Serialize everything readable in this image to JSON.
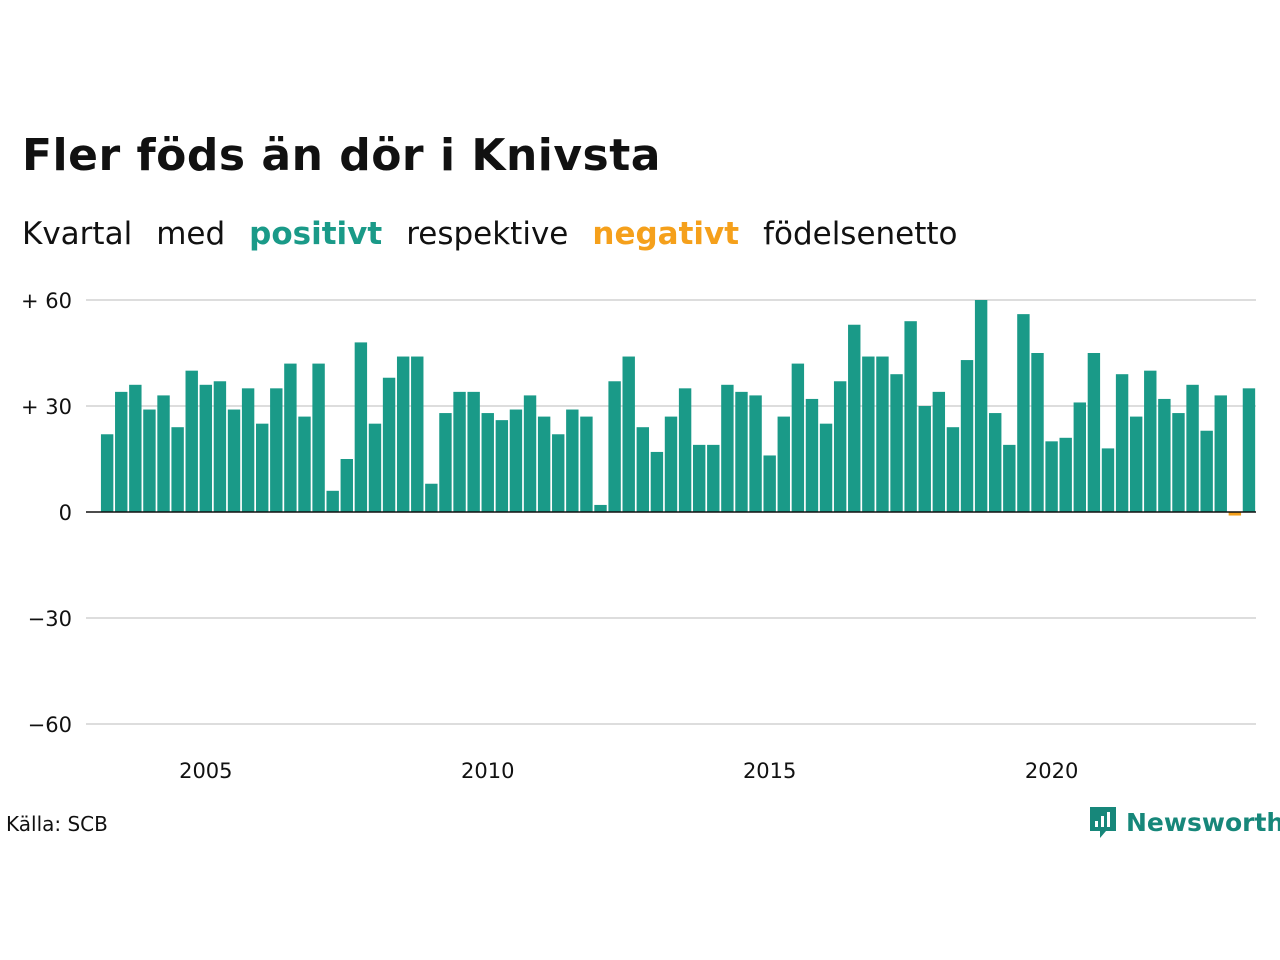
{
  "header": {
    "title": "Fler föds än dör i Knivsta",
    "subtitle_words": [
      "Kvartal",
      "med",
      "positivt",
      "respektive",
      "negativt",
      "födelsenetto"
    ]
  },
  "footer": {
    "source": "Källa: SCB",
    "brand": "Newsworthy"
  },
  "colors": {
    "positive": "#1a9a88",
    "negative": "#f5a01b",
    "grid": "#dddddd",
    "zero_line": "#111111",
    "brand": "#17877a"
  },
  "icons": {
    "logo": "newsworthy-chart-bubble-icon"
  },
  "chart_data": {
    "type": "bar",
    "title": "Fler föds än dör i Knivsta",
    "xlabel": "",
    "ylabel": "",
    "ylim": [
      -60,
      60
    ],
    "yticks": [
      60,
      30,
      0,
      -30,
      -60
    ],
    "ytick_labels": [
      "+ 60",
      "+ 30",
      "0",
      "−30",
      "−60"
    ],
    "xticks": [
      2005,
      2010,
      2015,
      2020
    ],
    "xlim": [
      2003.0,
      2023.75
    ],
    "grid": true,
    "first_quarter": "2003 Q2",
    "categories": [
      "2003 Q2",
      "2003 Q3",
      "2003 Q4",
      "2004 Q1",
      "2004 Q2",
      "2004 Q3",
      "2004 Q4",
      "2005 Q1",
      "2005 Q2",
      "2005 Q3",
      "2005 Q4",
      "2006 Q1",
      "2006 Q2",
      "2006 Q3",
      "2006 Q4",
      "2007 Q1",
      "2007 Q2",
      "2007 Q3",
      "2007 Q4",
      "2008 Q1",
      "2008 Q2",
      "2008 Q3",
      "2008 Q4",
      "2009 Q1",
      "2009 Q2",
      "2009 Q3",
      "2009 Q4",
      "2010 Q1",
      "2010 Q2",
      "2010 Q3",
      "2010 Q4",
      "2011 Q1",
      "2011 Q2",
      "2011 Q3",
      "2011 Q4",
      "2012 Q1",
      "2012 Q2",
      "2012 Q3",
      "2012 Q4",
      "2013 Q1",
      "2013 Q2",
      "2013 Q3",
      "2013 Q4",
      "2014 Q1",
      "2014 Q2",
      "2014 Q3",
      "2014 Q4",
      "2015 Q1",
      "2015 Q2",
      "2015 Q3",
      "2015 Q4",
      "2016 Q1",
      "2016 Q2",
      "2016 Q3",
      "2016 Q4",
      "2017 Q1",
      "2017 Q2",
      "2017 Q3",
      "2017 Q4",
      "2018 Q1",
      "2018 Q2",
      "2018 Q3",
      "2018 Q4",
      "2019 Q1",
      "2019 Q2",
      "2019 Q3",
      "2019 Q4",
      "2020 Q1",
      "2020 Q2",
      "2020 Q3",
      "2020 Q4",
      "2021 Q1",
      "2021 Q2",
      "2021 Q3",
      "2021 Q4",
      "2022 Q1",
      "2022 Q2",
      "2022 Q3",
      "2022 Q4",
      "2023 Q1",
      "2023 Q2",
      "2023 Q3"
    ],
    "values": [
      22,
      34,
      36,
      29,
      33,
      24,
      40,
      36,
      37,
      29,
      35,
      25,
      35,
      42,
      27,
      42,
      6,
      15,
      48,
      25,
      38,
      44,
      44,
      8,
      28,
      34,
      34,
      28,
      26,
      29,
      33,
      27,
      22,
      29,
      27,
      2,
      37,
      44,
      24,
      17,
      27,
      35,
      19,
      19,
      36,
      34,
      33,
      16,
      27,
      42,
      32,
      25,
      37,
      53,
      44,
      44,
      39,
      54,
      30,
      34,
      24,
      43,
      60,
      28,
      19,
      56,
      45,
      20,
      21,
      31,
      45,
      18,
      39,
      27,
      40,
      32,
      28,
      36,
      23,
      33,
      -1,
      35
    ]
  }
}
